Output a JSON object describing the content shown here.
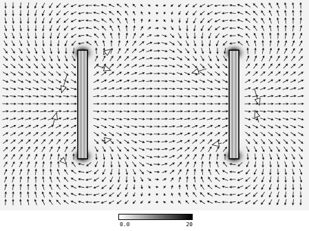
{
  "figure": {
    "description_type": "vector field over magnitude shading",
    "color_scale": {
      "min_label": "0.0",
      "max_label": "20",
      "low_color": "#ffffff",
      "high_color": "#000000"
    },
    "conductor_fill": "#bbbbbb",
    "conductor_edge": "#000000",
    "background_color": "#f3f3f3"
  }
}
